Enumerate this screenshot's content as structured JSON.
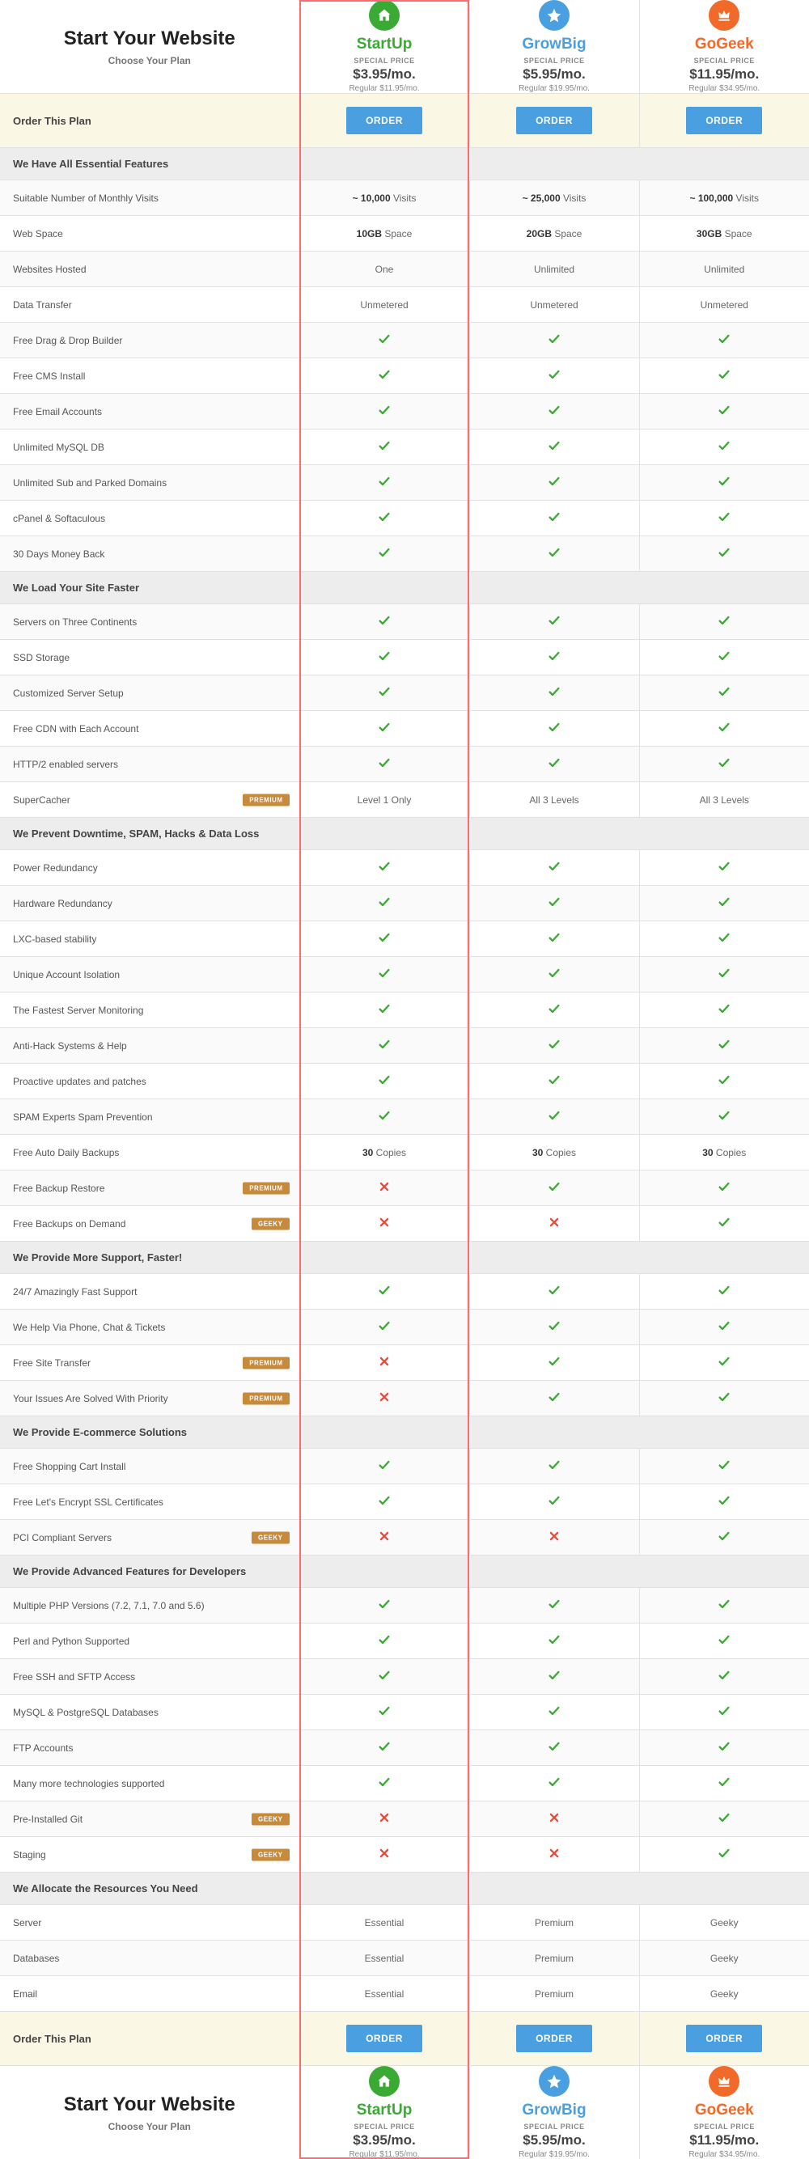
{
  "header": {
    "title": "Start Your Website",
    "subtitle": "Choose Your Plan"
  },
  "plans": [
    {
      "id": "startup",
      "name": "StartUp",
      "icon": "house",
      "icon_bg": "#3aaa35",
      "name_color": "#3aaa35",
      "special_label": "SPECIAL PRICE",
      "price": "$3.95/mo.",
      "regular": "Regular $11.95/mo.",
      "highlighted": true
    },
    {
      "id": "growbig",
      "name": "GrowBig",
      "icon": "star",
      "icon_bg": "#4a9fe0",
      "name_color": "#4a9fe0",
      "special_label": "SPECIAL PRICE",
      "price": "$5.95/mo.",
      "regular": "Regular $19.95/mo.",
      "highlighted": false
    },
    {
      "id": "gogeek",
      "name": "GoGeek",
      "icon": "crown",
      "icon_bg": "#f26a2a",
      "name_color": "#f26a2a",
      "special_label": "SPECIAL PRICE",
      "price": "$11.95/mo.",
      "regular": "Regular $34.95/mo.",
      "highlighted": false
    }
  ],
  "order_label": "Order This Plan",
  "order_button": "ORDER",
  "badges": {
    "premium": "PREMIUM",
    "geeky": "GEEKY"
  },
  "badge_bg": "#c78a3a",
  "colors": {
    "check": "#3aaa35",
    "cross": "#e74c3c",
    "order_btn_bg": "#4a9fe0",
    "highlight_border": "#ff6a6f",
    "order_row_bg": "#fbf7e5",
    "section_bg": "#ededed",
    "border": "#e1e1e1"
  },
  "sections": [
    {
      "title": "We Have All Essential Features",
      "rows": [
        {
          "label": "Suitable Number of Monthly Visits",
          "values": [
            {
              "type": "text",
              "bold": "~ 10,000",
              "rest": " Visits"
            },
            {
              "type": "text",
              "bold": "~ 25,000",
              "rest": " Visits"
            },
            {
              "type": "text",
              "bold": "~ 100,000",
              "rest": " Visits"
            }
          ]
        },
        {
          "label": "Web Space",
          "values": [
            {
              "type": "text",
              "bold": "10GB",
              "rest": " Space"
            },
            {
              "type": "text",
              "bold": "20GB",
              "rest": " Space"
            },
            {
              "type": "text",
              "bold": "30GB",
              "rest": " Space"
            }
          ]
        },
        {
          "label": "Websites Hosted",
          "values": [
            {
              "type": "plain",
              "text": "One"
            },
            {
              "type": "plain",
              "text": "Unlimited"
            },
            {
              "type": "plain",
              "text": "Unlimited"
            }
          ]
        },
        {
          "label": "Data Transfer",
          "values": [
            {
              "type": "plain",
              "text": "Unmetered"
            },
            {
              "type": "plain",
              "text": "Unmetered"
            },
            {
              "type": "plain",
              "text": "Unmetered"
            }
          ]
        },
        {
          "label": "Free Drag & Drop Builder",
          "values": [
            {
              "type": "check"
            },
            {
              "type": "check"
            },
            {
              "type": "check"
            }
          ]
        },
        {
          "label": "Free CMS Install",
          "values": [
            {
              "type": "check"
            },
            {
              "type": "check"
            },
            {
              "type": "check"
            }
          ]
        },
        {
          "label": "Free Email Accounts",
          "values": [
            {
              "type": "check"
            },
            {
              "type": "check"
            },
            {
              "type": "check"
            }
          ]
        },
        {
          "label": "Unlimited MySQL DB",
          "values": [
            {
              "type": "check"
            },
            {
              "type": "check"
            },
            {
              "type": "check"
            }
          ]
        },
        {
          "label": "Unlimited Sub and Parked Domains",
          "values": [
            {
              "type": "check"
            },
            {
              "type": "check"
            },
            {
              "type": "check"
            }
          ]
        },
        {
          "label": "cPanel & Softaculous",
          "values": [
            {
              "type": "check"
            },
            {
              "type": "check"
            },
            {
              "type": "check"
            }
          ]
        },
        {
          "label": "30 Days Money Back",
          "values": [
            {
              "type": "check"
            },
            {
              "type": "check"
            },
            {
              "type": "check"
            }
          ]
        }
      ]
    },
    {
      "title": "We Load Your Site Faster",
      "rows": [
        {
          "label": "Servers on Three Continents",
          "values": [
            {
              "type": "check"
            },
            {
              "type": "check"
            },
            {
              "type": "check"
            }
          ]
        },
        {
          "label": "SSD Storage",
          "values": [
            {
              "type": "check"
            },
            {
              "type": "check"
            },
            {
              "type": "check"
            }
          ]
        },
        {
          "label": "Customized Server Setup",
          "values": [
            {
              "type": "check"
            },
            {
              "type": "check"
            },
            {
              "type": "check"
            }
          ]
        },
        {
          "label": "Free CDN with Each Account",
          "values": [
            {
              "type": "check"
            },
            {
              "type": "check"
            },
            {
              "type": "check"
            }
          ]
        },
        {
          "label": "HTTP/2 enabled servers",
          "values": [
            {
              "type": "check"
            },
            {
              "type": "check"
            },
            {
              "type": "check"
            }
          ]
        },
        {
          "label": "SuperCacher",
          "badge": "premium",
          "values": [
            {
              "type": "plain",
              "text": "Level 1 Only"
            },
            {
              "type": "plain",
              "text": "All 3 Levels"
            },
            {
              "type": "plain",
              "text": "All 3 Levels"
            }
          ]
        }
      ]
    },
    {
      "title": "We Prevent Downtime, SPAM, Hacks & Data Loss",
      "rows": [
        {
          "label": "Power Redundancy",
          "values": [
            {
              "type": "check"
            },
            {
              "type": "check"
            },
            {
              "type": "check"
            }
          ]
        },
        {
          "label": "Hardware Redundancy",
          "values": [
            {
              "type": "check"
            },
            {
              "type": "check"
            },
            {
              "type": "check"
            }
          ]
        },
        {
          "label": "LXC-based stability",
          "values": [
            {
              "type": "check"
            },
            {
              "type": "check"
            },
            {
              "type": "check"
            }
          ]
        },
        {
          "label": "Unique Account Isolation",
          "values": [
            {
              "type": "check"
            },
            {
              "type": "check"
            },
            {
              "type": "check"
            }
          ]
        },
        {
          "label": "The Fastest Server Monitoring",
          "values": [
            {
              "type": "check"
            },
            {
              "type": "check"
            },
            {
              "type": "check"
            }
          ]
        },
        {
          "label": "Anti-Hack Systems & Help",
          "values": [
            {
              "type": "check"
            },
            {
              "type": "check"
            },
            {
              "type": "check"
            }
          ]
        },
        {
          "label": "Proactive updates and patches",
          "values": [
            {
              "type": "check"
            },
            {
              "type": "check"
            },
            {
              "type": "check"
            }
          ]
        },
        {
          "label": "SPAM Experts Spam Prevention",
          "values": [
            {
              "type": "check"
            },
            {
              "type": "check"
            },
            {
              "type": "check"
            }
          ]
        },
        {
          "label": "Free Auto Daily Backups",
          "values": [
            {
              "type": "text",
              "bold": "30",
              "rest": " Copies"
            },
            {
              "type": "text",
              "bold": "30",
              "rest": " Copies"
            },
            {
              "type": "text",
              "bold": "30",
              "rest": " Copies"
            }
          ]
        },
        {
          "label": "Free Backup Restore",
          "badge": "premium",
          "values": [
            {
              "type": "cross"
            },
            {
              "type": "check"
            },
            {
              "type": "check"
            }
          ]
        },
        {
          "label": "Free Backups on Demand",
          "badge": "geeky",
          "values": [
            {
              "type": "cross"
            },
            {
              "type": "cross"
            },
            {
              "type": "check"
            }
          ]
        }
      ]
    },
    {
      "title": "We Provide More Support, Faster!",
      "rows": [
        {
          "label": "24/7 Amazingly Fast Support",
          "values": [
            {
              "type": "check"
            },
            {
              "type": "check"
            },
            {
              "type": "check"
            }
          ]
        },
        {
          "label": "We Help Via Phone, Chat & Tickets",
          "values": [
            {
              "type": "check"
            },
            {
              "type": "check"
            },
            {
              "type": "check"
            }
          ]
        },
        {
          "label": "Free Site Transfer",
          "badge": "premium",
          "values": [
            {
              "type": "cross"
            },
            {
              "type": "check"
            },
            {
              "type": "check"
            }
          ]
        },
        {
          "label": "Your Issues Are Solved With Priority",
          "badge": "premium",
          "values": [
            {
              "type": "cross"
            },
            {
              "type": "check"
            },
            {
              "type": "check"
            }
          ]
        }
      ]
    },
    {
      "title": "We Provide E-commerce Solutions",
      "rows": [
        {
          "label": "Free Shopping Cart Install",
          "values": [
            {
              "type": "check"
            },
            {
              "type": "check"
            },
            {
              "type": "check"
            }
          ]
        },
        {
          "label": "Free Let's Encrypt SSL Certificates",
          "values": [
            {
              "type": "check"
            },
            {
              "type": "check"
            },
            {
              "type": "check"
            }
          ]
        },
        {
          "label": "PCI Compliant Servers",
          "badge": "geeky",
          "values": [
            {
              "type": "cross"
            },
            {
              "type": "cross"
            },
            {
              "type": "check"
            }
          ]
        }
      ]
    },
    {
      "title": "We Provide Advanced Features for Developers",
      "rows": [
        {
          "label": "Multiple PHP Versions (7.2, 7.1, 7.0 and 5.6)",
          "values": [
            {
              "type": "check"
            },
            {
              "type": "check"
            },
            {
              "type": "check"
            }
          ]
        },
        {
          "label": "Perl and Python Supported",
          "values": [
            {
              "type": "check"
            },
            {
              "type": "check"
            },
            {
              "type": "check"
            }
          ]
        },
        {
          "label": "Free SSH and SFTP Access",
          "values": [
            {
              "type": "check"
            },
            {
              "type": "check"
            },
            {
              "type": "check"
            }
          ]
        },
        {
          "label": "MySQL & PostgreSQL Databases",
          "values": [
            {
              "type": "check"
            },
            {
              "type": "check"
            },
            {
              "type": "check"
            }
          ]
        },
        {
          "label": "FTP Accounts",
          "values": [
            {
              "type": "check"
            },
            {
              "type": "check"
            },
            {
              "type": "check"
            }
          ]
        },
        {
          "label": "Many more technologies supported",
          "values": [
            {
              "type": "check"
            },
            {
              "type": "check"
            },
            {
              "type": "check"
            }
          ]
        },
        {
          "label": "Pre-Installed Git",
          "badge": "geeky",
          "values": [
            {
              "type": "cross"
            },
            {
              "type": "cross"
            },
            {
              "type": "check"
            }
          ]
        },
        {
          "label": "Staging",
          "badge": "geeky",
          "values": [
            {
              "type": "cross"
            },
            {
              "type": "cross"
            },
            {
              "type": "check"
            }
          ]
        }
      ]
    },
    {
      "title": "We Allocate the Resources You Need",
      "rows": [
        {
          "label": "Server",
          "values": [
            {
              "type": "plain",
              "text": "Essential"
            },
            {
              "type": "plain",
              "text": "Premium"
            },
            {
              "type": "plain",
              "text": "Geeky"
            }
          ]
        },
        {
          "label": "Databases",
          "values": [
            {
              "type": "plain",
              "text": "Essential"
            },
            {
              "type": "plain",
              "text": "Premium"
            },
            {
              "type": "plain",
              "text": "Geeky"
            }
          ]
        },
        {
          "label": "Email",
          "values": [
            {
              "type": "plain",
              "text": "Essential"
            },
            {
              "type": "plain",
              "text": "Premium"
            },
            {
              "type": "plain",
              "text": "Geeky"
            }
          ]
        }
      ]
    }
  ]
}
